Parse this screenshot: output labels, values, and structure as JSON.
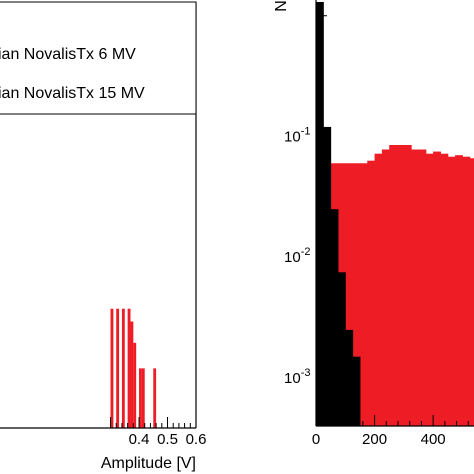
{
  "chart_data": [
    {
      "type": "bar",
      "xlabel": "Amplitude [V]",
      "ylabel": "",
      "xlim": [
        -0.095,
        0.6
      ],
      "ylim": [
        0,
        1
      ],
      "x_ticks": [
        "0.4",
        "0.5",
        "0.6"
      ],
      "x_tick_values": [
        0.4,
        0.5,
        0.6
      ],
      "grid": false,
      "legend_position": "top",
      "legend": [
        {
          "label": "ian NovalisTx 6 MV",
          "color": "#000000"
        },
        {
          "label": "ian NovalisTx 15 MV",
          "color": "#ee1c25"
        }
      ],
      "bin_width": 0.01,
      "series": [
        {
          "color": "#ee1c25",
          "bins": [
            {
              "x0": 0.3,
              "value": 0.28
            },
            {
              "x0": 0.32,
              "value": 0.28
            },
            {
              "x0": 0.34,
              "value": 0.28
            },
            {
              "x0": 0.36,
              "value": 0.28
            },
            {
              "x0": 0.37,
              "value": 0.25
            },
            {
              "x0": 0.38,
              "value": 0.2
            },
            {
              "x0": 0.4,
              "value": 0.14
            },
            {
              "x0": 0.41,
              "value": 0.14
            },
            {
              "x0": 0.45,
              "value": 0.14
            }
          ]
        }
      ]
    },
    {
      "type": "bar",
      "y_scale": "log",
      "xlim": [
        0,
        560
      ],
      "ylim": [
        0.0004,
        1.35
      ],
      "x_ticks": [
        "0",
        "200",
        "400"
      ],
      "x_tick_values": [
        0,
        200,
        400
      ],
      "y_ticks": [
        "10-1",
        "10-2",
        "10-3"
      ],
      "y_tick_values": [
        0.1,
        0.01,
        0.001
      ],
      "ylabel_fragment": "N",
      "grid": false,
      "bin_width": 25,
      "series": [
        {
          "color": "#ee1c25",
          "bins": [
            {
              "x0": 0,
              "value": 0.06
            },
            {
              "x0": 25,
              "value": 0.06
            },
            {
              "x0": 50,
              "value": 0.06
            },
            {
              "x0": 75,
              "value": 0.06
            },
            {
              "x0": 100,
              "value": 0.06
            },
            {
              "x0": 125,
              "value": 0.06
            },
            {
              "x0": 150,
              "value": 0.06
            },
            {
              "x0": 175,
              "value": 0.063
            },
            {
              "x0": 200,
              "value": 0.072
            },
            {
              "x0": 225,
              "value": 0.078
            },
            {
              "x0": 250,
              "value": 0.085
            },
            {
              "x0": 275,
              "value": 0.085
            },
            {
              "x0": 300,
              "value": 0.085
            },
            {
              "x0": 325,
              "value": 0.078
            },
            {
              "x0": 350,
              "value": 0.078
            },
            {
              "x0": 375,
              "value": 0.072
            },
            {
              "x0": 400,
              "value": 0.075
            },
            {
              "x0": 425,
              "value": 0.072
            },
            {
              "x0": 450,
              "value": 0.068
            },
            {
              "x0": 475,
              "value": 0.07
            },
            {
              "x0": 500,
              "value": 0.068
            },
            {
              "x0": 525,
              "value": 0.066
            }
          ]
        },
        {
          "color": "#000000",
          "bins": [
            {
              "x0": 0,
              "value": 1.3
            },
            {
              "x0": 25,
              "value": 0.12
            },
            {
              "x0": 50,
              "value": 0.025
            },
            {
              "x0": 75,
              "value": 0.0075
            },
            {
              "x0": 100,
              "value": 0.0025
            },
            {
              "x0": 125,
              "value": 0.0015
            }
          ]
        }
      ]
    }
  ]
}
